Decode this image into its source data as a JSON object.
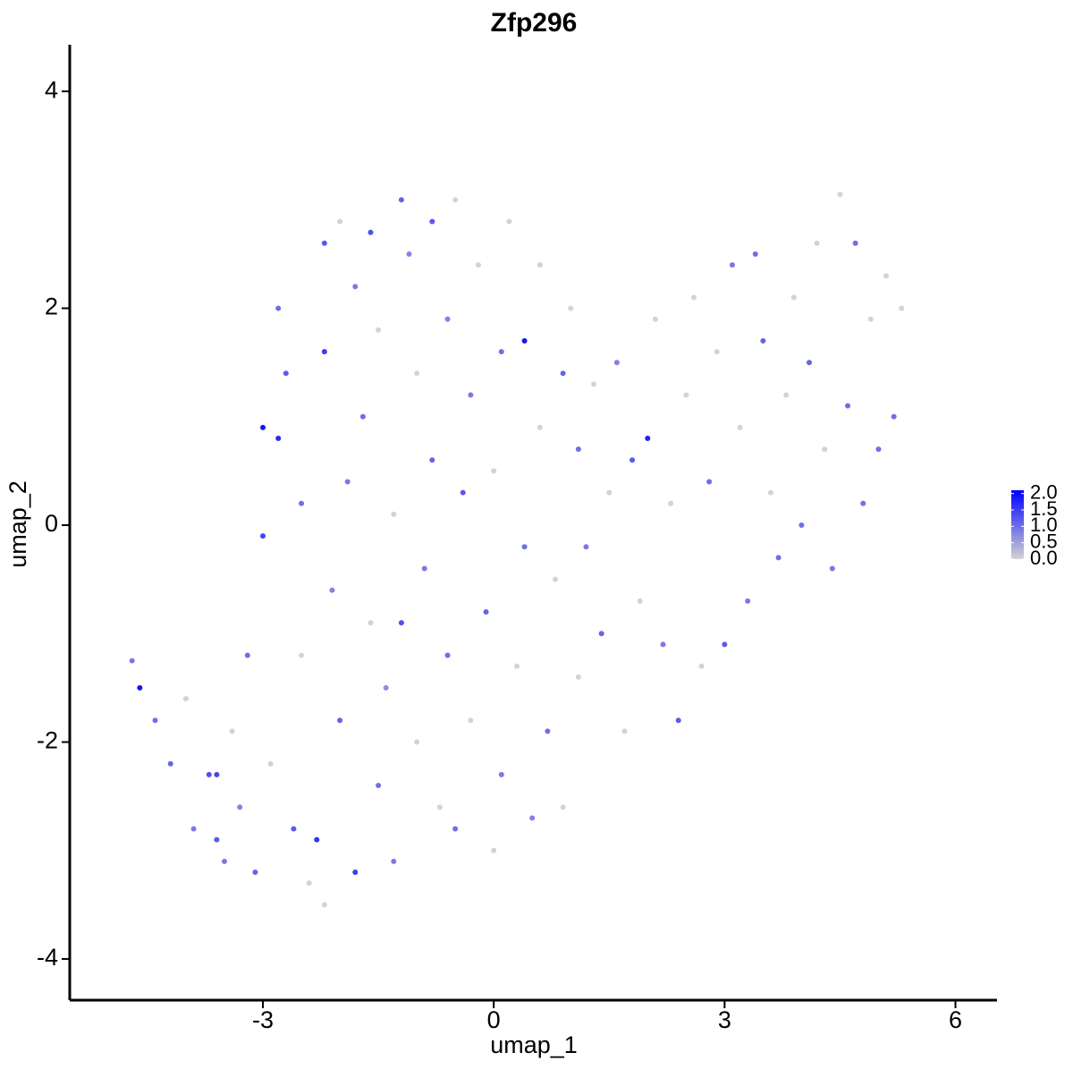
{
  "chart_data": {
    "type": "scatter",
    "title": "Zfp296",
    "xlabel": "umap_1",
    "ylabel": "umap_2",
    "xlim": [
      -5.51,
      6.54
    ],
    "ylim": [
      -4.38,
      4.43
    ],
    "xticks": [
      -3,
      0,
      3,
      6
    ],
    "yticks": [
      -4,
      -2,
      0,
      2,
      4
    ],
    "colors": [
      "#d3d3d3",
      "#0000ff"
    ],
    "colorlim": [
      0,
      2.1
    ],
    "colorticks": [
      {
        "value": 0,
        "label": "0.0"
      },
      {
        "value": 0.5,
        "label": "0.5"
      },
      {
        "value": 1,
        "label": "1.0"
      },
      {
        "value": 1.5,
        "label": "1.5"
      },
      {
        "value": 2,
        "label": "2.0"
      }
    ],
    "x": [
      -4.7,
      -4.6,
      -4.4,
      -4.2,
      -4.0,
      -3.9,
      -3.7,
      -3.6,
      -3.5,
      -3.4,
      -3.3,
      -3.2,
      -3.1,
      -3.0,
      -3.0,
      -2.9,
      -2.8,
      -2.8,
      -2.7,
      -2.6,
      -2.5,
      -2.5,
      -2.4,
      -2.3,
      -2.2,
      -2.2,
      -2.2,
      -2.1,
      -2.0,
      -2.0,
      -1.9,
      -1.8,
      -1.8,
      -1.7,
      -1.6,
      -1.6,
      -1.5,
      -1.5,
      -1.4,
      -1.3,
      -1.3,
      -1.2,
      -1.2,
      -1.1,
      -1.0,
      -1.0,
      -0.9,
      -0.8,
      -0.8,
      -0.7,
      -0.6,
      -0.6,
      -0.5,
      -0.5,
      -0.4,
      -0.3,
      -0.3,
      -0.2,
      -0.1,
      0.0,
      0.0,
      0.1,
      0.1,
      0.2,
      0.3,
      0.4,
      0.4,
      0.5,
      0.6,
      0.6,
      0.7,
      0.8,
      0.9,
      0.9,
      1.0,
      1.1,
      1.1,
      1.2,
      1.3,
      1.4,
      1.5,
      1.6,
      1.7,
      1.8,
      1.9,
      2.0,
      2.1,
      2.2,
      2.3,
      2.4,
      2.5,
      2.6,
      2.7,
      2.8,
      2.9,
      3.0,
      3.1,
      3.2,
      3.3,
      3.4,
      3.5,
      3.6,
      3.7,
      3.8,
      3.9,
      4.0,
      4.1,
      4.2,
      4.3,
      4.4,
      4.5,
      4.6,
      4.7,
      4.8,
      4.9,
      5.0,
      5.1,
      5.2,
      5.3,
      -3.6
    ],
    "y": [
      -1.25,
      -1.5,
      -1.8,
      -2.2,
      -1.6,
      -2.8,
      -2.3,
      -2.9,
      -3.1,
      -1.9,
      -2.6,
      -1.2,
      -3.2,
      -0.1,
      0.9,
      -2.2,
      0.8,
      2.0,
      1.4,
      -2.8,
      -1.2,
      0.2,
      -3.3,
      -2.9,
      -3.5,
      1.6,
      2.6,
      -0.6,
      2.8,
      -1.8,
      0.4,
      -3.2,
      2.2,
      1.0,
      -0.9,
      2.7,
      -2.4,
      1.8,
      -1.5,
      -3.1,
      0.1,
      3.0,
      -0.9,
      2.5,
      1.4,
      -2.0,
      -0.4,
      2.8,
      0.6,
      -2.6,
      -1.2,
      1.9,
      3.0,
      -2.8,
      0.3,
      -1.8,
      1.2,
      2.4,
      -0.8,
      -3.0,
      0.5,
      1.6,
      -2.3,
      2.8,
      -1.3,
      1.7,
      -0.2,
      -2.7,
      2.4,
      0.9,
      -1.9,
      -0.5,
      1.4,
      -2.6,
      2.0,
      0.7,
      -1.4,
      -0.2,
      1.3,
      -1.0,
      0.3,
      1.5,
      -1.9,
      0.6,
      -0.7,
      0.8,
      1.9,
      -1.1,
      0.2,
      -1.8,
      1.2,
      2.1,
      -1.3,
      0.4,
      1.6,
      -1.1,
      2.4,
      0.9,
      -0.7,
      2.5,
      1.7,
      0.3,
      -0.3,
      1.2,
      2.1,
      0.0,
      1.5,
      2.6,
      0.7,
      -0.4,
      3.05,
      1.1,
      2.6,
      0.2,
      1.9,
      0.7,
      2.3,
      1.0,
      2.0,
      -2.3
    ],
    "values": [
      0.9,
      1.9,
      1.0,
      1.1,
      0.0,
      0.9,
      1.3,
      1.2,
      0.9,
      0.0,
      0.8,
      1.0,
      1.1,
      1.4,
      1.9,
      0.0,
      1.7,
      1.0,
      1.2,
      1.2,
      0.0,
      1.0,
      0.0,
      1.6,
      0.0,
      1.5,
      1.2,
      0.8,
      0.0,
      1.1,
      0.9,
      1.5,
      0.9,
      1.0,
      0.0,
      1.3,
      1.0,
      0.0,
      0.7,
      0.9,
      0.0,
      1.1,
      1.3,
      0.8,
      0.0,
      0.0,
      0.9,
      1.2,
      1.1,
      0.0,
      1.0,
      0.8,
      0.0,
      1.0,
      1.2,
      0.0,
      0.9,
      0.0,
      1.1,
      0.0,
      0.0,
      1.0,
      0.9,
      0.0,
      0.0,
      1.9,
      1.0,
      0.8,
      0.0,
      0.0,
      1.0,
      0.0,
      1.1,
      0.0,
      0.0,
      1.0,
      0.0,
      0.9,
      0.0,
      1.1,
      0.0,
      0.8,
      0.0,
      1.2,
      0.0,
      1.8,
      0.0,
      0.9,
      0.0,
      1.2,
      0.0,
      0.0,
      0.0,
      1.0,
      0.0,
      1.2,
      0.9,
      0.0,
      0.9,
      1.0,
      1.1,
      0.0,
      1.0,
      0.0,
      0.0,
      1.0,
      1.1,
      0.0,
      0.0,
      0.9,
      0.0,
      1.0,
      1.0,
      1.0,
      0.0,
      1.0,
      0.0,
      1.0,
      0.0,
      1.4
    ]
  }
}
